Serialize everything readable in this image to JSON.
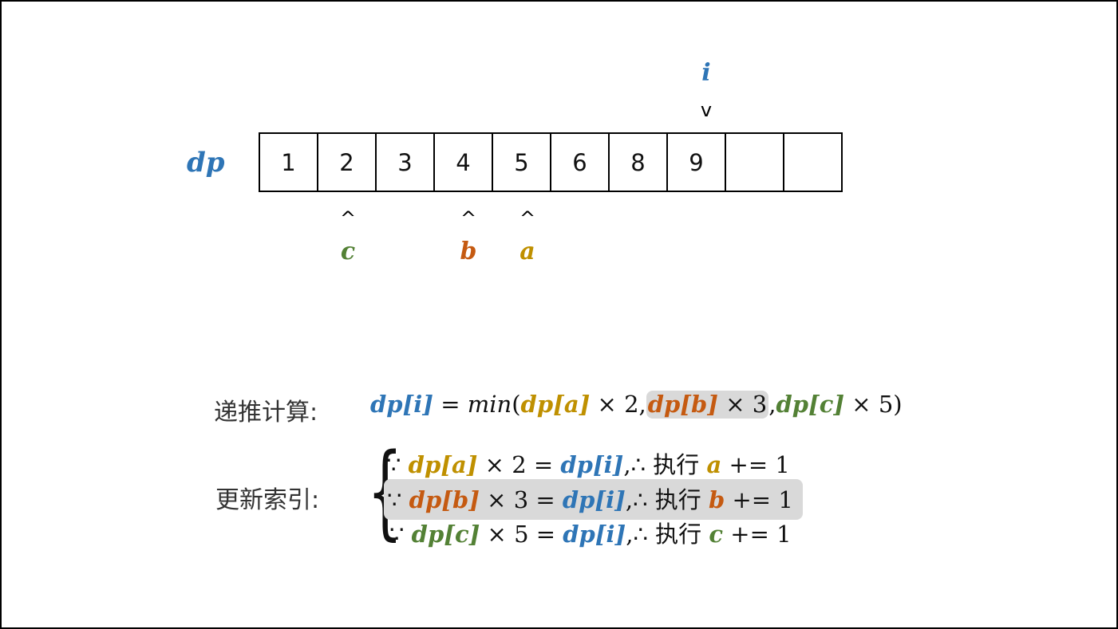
{
  "colors": {
    "i": "#2e75b6",
    "a": "#bf9000",
    "b": "#c55a11",
    "c": "#538135",
    "highlight": "#d9d9d9"
  },
  "array": {
    "label": "dp",
    "cells": [
      "1",
      "2",
      "3",
      "4",
      "5",
      "6",
      "8",
      "9",
      "",
      ""
    ]
  },
  "pointers": {
    "top": {
      "name": "i",
      "arrow": "v",
      "cell_index": 7
    },
    "bottom": [
      {
        "name": "c",
        "arrow": "^",
        "cell_index": 1
      },
      {
        "name": "b",
        "arrow": "^",
        "cell_index": 3
      },
      {
        "name": "a",
        "arrow": "^",
        "cell_index": 4
      }
    ]
  },
  "recurrence": {
    "label": "递推计算:",
    "lhs": "dp[i]",
    "eq": " = ",
    "fn": "min",
    "open": "(",
    "term_a": "dp[a]",
    "mul_a": " × 2,",
    "term_b": "dp[b]",
    "mul_b": " × 3",
    "comma": ",",
    "term_c": "dp[c]",
    "mul_c": " × 5",
    "close": ")",
    "highlighted_term": "b"
  },
  "update": {
    "label": "更新索引:",
    "brace": "{",
    "because": "∵ ",
    "therefore": ",∴ ",
    "execute": "执行 ",
    "increment": " += 1",
    "rows": [
      {
        "var": "a",
        "term": "dp[a]",
        "factor": " × 2 = ",
        "target": "dp[i]",
        "highlighted": false
      },
      {
        "var": "b",
        "term": "dp[b]",
        "factor": " × 3 = ",
        "target": "dp[i]",
        "highlighted": true
      },
      {
        "var": "c",
        "term": "dp[c]",
        "factor": " × 5 = ",
        "target": "dp[i]",
        "highlighted": false
      }
    ]
  }
}
